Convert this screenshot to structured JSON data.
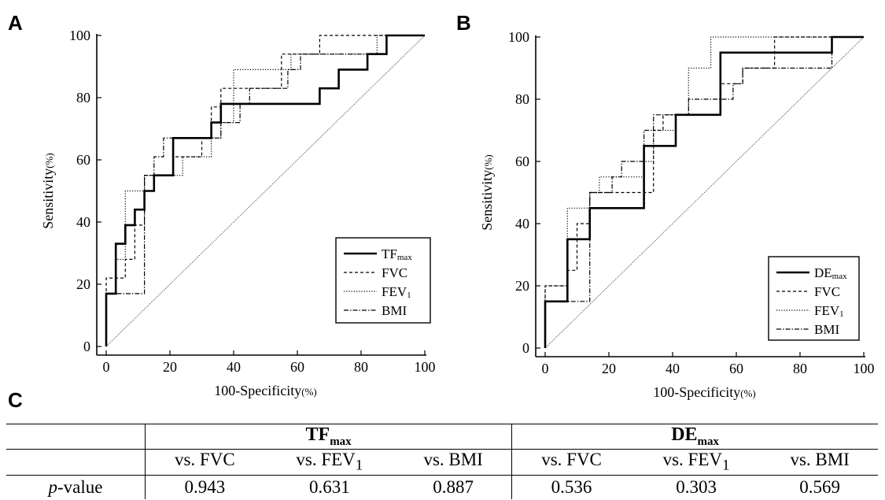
{
  "panels": {
    "a": "A",
    "b": "B",
    "c": "C"
  },
  "chart_data": [
    {
      "type": "line",
      "panel": "A",
      "xlabel": "100-Specificity",
      "xlabel_unit": "(%)",
      "ylabel": "Sensitivity",
      "ylabel_unit": "(%)",
      "xlim": [
        0,
        100
      ],
      "ylim": [
        0,
        100
      ],
      "xticks": [
        0,
        20,
        40,
        60,
        80,
        100
      ],
      "yticks": [
        0,
        20,
        40,
        60,
        80,
        100
      ],
      "legend_position": "bottom-right",
      "reference_line": [
        [
          0,
          0
        ],
        [
          100,
          100
        ]
      ],
      "series": [
        {
          "name": "TF",
          "name_sub": "max",
          "style": "solid",
          "points": [
            [
              0,
              0
            ],
            [
              0,
              17
            ],
            [
              3,
              17
            ],
            [
              3,
              33
            ],
            [
              6,
              33
            ],
            [
              6,
              39
            ],
            [
              9,
              39
            ],
            [
              9,
              44
            ],
            [
              12,
              44
            ],
            [
              12,
              50
            ],
            [
              15,
              50
            ],
            [
              15,
              55
            ],
            [
              21,
              55
            ],
            [
              21,
              67
            ],
            [
              33,
              67
            ],
            [
              33,
              72
            ],
            [
              36,
              72
            ],
            [
              36,
              78
            ],
            [
              54,
              78
            ],
            [
              54,
              78
            ],
            [
              67,
              78
            ],
            [
              67,
              83
            ],
            [
              73,
              83
            ],
            [
              73,
              89
            ],
            [
              82,
              89
            ],
            [
              82,
              94
            ],
            [
              88,
              94
            ],
            [
              88,
              100
            ],
            [
              100,
              100
            ]
          ]
        },
        {
          "name": "FVC",
          "style": "dashed",
          "points": [
            [
              0,
              0
            ],
            [
              0,
              22
            ],
            [
              6,
              22
            ],
            [
              6,
              28
            ],
            [
              9,
              28
            ],
            [
              9,
              39
            ],
            [
              12,
              39
            ],
            [
              12,
              55
            ],
            [
              21,
              55
            ],
            [
              21,
              61
            ],
            [
              30,
              61
            ],
            [
              30,
              67
            ],
            [
              33,
              67
            ],
            [
              33,
              77
            ],
            [
              36,
              77
            ],
            [
              36,
              83
            ],
            [
              55,
              83
            ],
            [
              55,
              94
            ],
            [
              67,
              94
            ],
            [
              67,
              100
            ],
            [
              100,
              100
            ]
          ]
        },
        {
          "name": "FEV",
          "name_sub": "1",
          "style": "dotted",
          "points": [
            [
              0,
              0
            ],
            [
              0,
              17
            ],
            [
              3,
              17
            ],
            [
              3,
              28
            ],
            [
              6,
              28
            ],
            [
              6,
              50
            ],
            [
              12,
              50
            ],
            [
              12,
              55
            ],
            [
              24,
              55
            ],
            [
              24,
              61
            ],
            [
              33,
              61
            ],
            [
              33,
              67
            ],
            [
              36,
              67
            ],
            [
              36,
              72
            ],
            [
              40,
              72
            ],
            [
              40,
              89
            ],
            [
              58,
              89
            ],
            [
              58,
              94
            ],
            [
              85,
              94
            ],
            [
              85,
              100
            ],
            [
              100,
              100
            ]
          ]
        },
        {
          "name": "BMI",
          "style": "dashdot",
          "points": [
            [
              0,
              0
            ],
            [
              0,
              17
            ],
            [
              12,
              17
            ],
            [
              12,
              55
            ],
            [
              15,
              55
            ],
            [
              15,
              61
            ],
            [
              18,
              61
            ],
            [
              18,
              67
            ],
            [
              36,
              67
            ],
            [
              36,
              72
            ],
            [
              42,
              72
            ],
            [
              42,
              78
            ],
            [
              45,
              78
            ],
            [
              45,
              83
            ],
            [
              57,
              83
            ],
            [
              57,
              89
            ],
            [
              61,
              89
            ],
            [
              61,
              94
            ],
            [
              88,
              94
            ],
            [
              88,
              100
            ],
            [
              100,
              100
            ]
          ]
        }
      ]
    },
    {
      "type": "line",
      "panel": "B",
      "xlabel": "100-Specificity",
      "xlabel_unit": "(%)",
      "ylabel": "Sensitivity",
      "ylabel_unit": "(%)",
      "xlim": [
        0,
        100
      ],
      "ylim": [
        0,
        100
      ],
      "xticks": [
        0,
        20,
        40,
        60,
        80,
        100
      ],
      "yticks": [
        0,
        20,
        40,
        60,
        80,
        100
      ],
      "legend_position": "bottom-right",
      "reference_line": [
        [
          0,
          0
        ],
        [
          100,
          100
        ]
      ],
      "series": [
        {
          "name": "DE",
          "name_sub": "max",
          "style": "solid",
          "points": [
            [
              0,
              0
            ],
            [
              0,
              15
            ],
            [
              7,
              15
            ],
            [
              7,
              35
            ],
            [
              14,
              35
            ],
            [
              14,
              45
            ],
            [
              31,
              45
            ],
            [
              31,
              65
            ],
            [
              41,
              65
            ],
            [
              41,
              75
            ],
            [
              55,
              75
            ],
            [
              55,
              95
            ],
            [
              90,
              95
            ],
            [
              90,
              100
            ],
            [
              100,
              100
            ]
          ]
        },
        {
          "name": "FVC",
          "style": "dashed",
          "points": [
            [
              0,
              0
            ],
            [
              0,
              20
            ],
            [
              7,
              20
            ],
            [
              7,
              25
            ],
            [
              10,
              25
            ],
            [
              10,
              40
            ],
            [
              14,
              40
            ],
            [
              14,
              50
            ],
            [
              34,
              50
            ],
            [
              34,
              70
            ],
            [
              37,
              70
            ],
            [
              37,
              75
            ],
            [
              55,
              75
            ],
            [
              55,
              85
            ],
            [
              62,
              85
            ],
            [
              62,
              90
            ],
            [
              72,
              90
            ],
            [
              72,
              100
            ],
            [
              100,
              100
            ]
          ]
        },
        {
          "name": "FEV",
          "name_sub": "1",
          "style": "dotted",
          "points": [
            [
              0,
              0
            ],
            [
              0,
              20
            ],
            [
              7,
              20
            ],
            [
              7,
              45
            ],
            [
              14,
              45
            ],
            [
              14,
              50
            ],
            [
              17,
              50
            ],
            [
              17,
              55
            ],
            [
              31,
              55
            ],
            [
              31,
              60
            ],
            [
              34,
              60
            ],
            [
              34,
              70
            ],
            [
              41,
              70
            ],
            [
              41,
              75
            ],
            [
              45,
              75
            ],
            [
              45,
              90
            ],
            [
              52,
              90
            ],
            [
              52,
              100
            ],
            [
              100,
              100
            ]
          ]
        },
        {
          "name": "BMI",
          "style": "dashdot",
          "points": [
            [
              0,
              0
            ],
            [
              0,
              15
            ],
            [
              14,
              15
            ],
            [
              14,
              50
            ],
            [
              21,
              50
            ],
            [
              21,
              55
            ],
            [
              24,
              55
            ],
            [
              24,
              60
            ],
            [
              31,
              60
            ],
            [
              31,
              70
            ],
            [
              34,
              70
            ],
            [
              34,
              75
            ],
            [
              45,
              75
            ],
            [
              45,
              80
            ],
            [
              59,
              80
            ],
            [
              59,
              85
            ],
            [
              62,
              85
            ],
            [
              62,
              90
            ],
            [
              90,
              90
            ],
            [
              90,
              100
            ],
            [
              100,
              100
            ]
          ]
        }
      ]
    }
  ],
  "table": {
    "groups": [
      {
        "label": "TF",
        "sub": "max"
      },
      {
        "label": "DE",
        "sub": "max"
      }
    ],
    "columns": [
      {
        "text": "vs. FVC",
        "sub": ""
      },
      {
        "text": "vs. FEV",
        "sub": "1"
      },
      {
        "text": "vs. BMI",
        "sub": ""
      },
      {
        "text": "vs. FVC",
        "sub": ""
      },
      {
        "text": "vs. FEV",
        "sub": "1"
      },
      {
        "text": "vs. BMI",
        "sub": ""
      }
    ],
    "row_label": "p",
    "row_label_suffix": "-value",
    "values": [
      "0.943",
      "0.631",
      "0.887",
      "0.536",
      "0.303",
      "0.569"
    ]
  }
}
